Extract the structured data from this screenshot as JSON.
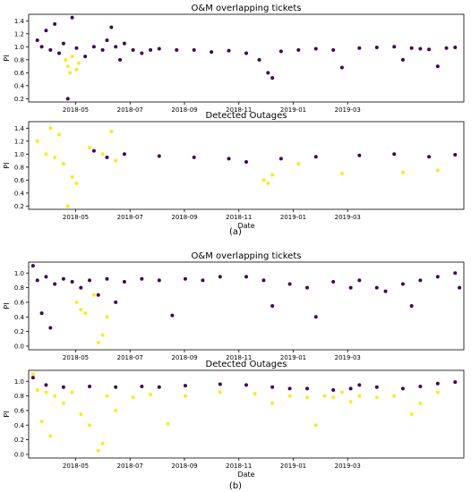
{
  "chart_data": [
    {
      "type": "scatter",
      "title": "O&M overlapping tickets",
      "xlabel": "",
      "ylabel": "PI",
      "xticks": [
        "2018-05",
        "2018-07",
        "2018-09",
        "2018-11",
        "2019-01",
        "2019-03"
      ],
      "yticks": [
        "0.2",
        "0.4",
        "0.6",
        "0.8",
        "1.0",
        "1.2",
        "1.4"
      ],
      "ylim": [
        0.15,
        1.5
      ],
      "grid": false,
      "point_color": "#440154",
      "highlight_color": "#fde725",
      "series": [
        {
          "values": [
            [
              0.02,
              1.1
            ],
            [
              0.03,
              1.0
            ],
            [
              0.04,
              1.25
            ],
            [
              0.05,
              0.95
            ],
            [
              0.06,
              1.35
            ],
            [
              0.07,
              0.9
            ],
            [
              0.08,
              1.05
            ],
            [
              0.09,
              0.2
            ],
            [
              0.1,
              1.45
            ],
            [
              0.11,
              0.98
            ],
            [
              0.13,
              0.85
            ],
            [
              0.15,
              1.0
            ],
            [
              0.17,
              0.95
            ],
            [
              0.18,
              1.1
            ],
            [
              0.19,
              1.3
            ],
            [
              0.2,
              1.0
            ],
            [
              0.21,
              0.8
            ],
            [
              0.22,
              1.05
            ],
            [
              0.24,
              0.95
            ],
            [
              0.26,
              0.9
            ],
            [
              0.28,
              0.95
            ],
            [
              0.3,
              0.97
            ],
            [
              0.34,
              0.95
            ],
            [
              0.38,
              0.95
            ],
            [
              0.42,
              0.92
            ],
            [
              0.46,
              0.94
            ],
            [
              0.5,
              0.9
            ],
            [
              0.53,
              0.8
            ],
            [
              0.55,
              0.6
            ],
            [
              0.56,
              0.52
            ],
            [
              0.58,
              0.93
            ],
            [
              0.62,
              0.95
            ],
            [
              0.66,
              0.97
            ],
            [
              0.7,
              0.95
            ],
            [
              0.72,
              0.68
            ],
            [
              0.76,
              0.98
            ],
            [
              0.8,
              0.99
            ],
            [
              0.84,
              1.0
            ],
            [
              0.86,
              0.8
            ],
            [
              0.88,
              0.98
            ],
            [
              0.9,
              0.97
            ],
            [
              0.92,
              0.96
            ],
            [
              0.94,
              0.7
            ],
            [
              0.96,
              0.98
            ],
            [
              0.98,
              0.99
            ]
          ]
        },
        {
          "values": [
            [
              0.085,
              0.8
            ],
            [
              0.09,
              0.7
            ],
            [
              0.095,
              0.6
            ],
            [
              0.1,
              0.85
            ],
            [
              0.11,
              0.65
            ],
            [
              0.115,
              0.75
            ]
          ]
        }
      ]
    },
    {
      "type": "scatter",
      "title": "Detected Outages",
      "xlabel": "Date",
      "ylabel": "PI",
      "xticks": [
        "2018-05",
        "2018-07",
        "2018-09",
        "2018-11",
        "2019-01",
        "2019-03"
      ],
      "yticks": [
        "0.2",
        "0.4",
        "0.6",
        "0.8",
        "1.0",
        "1.2",
        "1.4"
      ],
      "ylim": [
        0.15,
        1.5
      ],
      "grid": false,
      "point_color": "#440154",
      "highlight_color": "#fde725",
      "series": [
        {
          "values": [
            [
              0.15,
              1.05
            ],
            [
              0.18,
              0.95
            ],
            [
              0.22,
              1.0
            ],
            [
              0.3,
              0.97
            ],
            [
              0.38,
              0.95
            ],
            [
              0.46,
              0.93
            ],
            [
              0.5,
              0.88
            ],
            [
              0.58,
              0.93
            ],
            [
              0.66,
              0.96
            ],
            [
              0.76,
              0.98
            ],
            [
              0.84,
              1.0
            ],
            [
              0.92,
              0.96
            ],
            [
              0.98,
              0.99
            ]
          ]
        },
        {
          "values": [
            [
              0.02,
              1.2
            ],
            [
              0.04,
              1.0
            ],
            [
              0.05,
              1.4
            ],
            [
              0.06,
              0.95
            ],
            [
              0.07,
              1.3
            ],
            [
              0.08,
              0.85
            ],
            [
              0.09,
              0.2
            ],
            [
              0.1,
              0.65
            ],
            [
              0.11,
              0.55
            ],
            [
              0.14,
              1.1
            ],
            [
              0.17,
              1.0
            ],
            [
              0.19,
              1.35
            ],
            [
              0.2,
              0.9
            ],
            [
              0.54,
              0.6
            ],
            [
              0.55,
              0.55
            ],
            [
              0.56,
              0.68
            ],
            [
              0.62,
              0.85
            ],
            [
              0.72,
              0.7
            ],
            [
              0.86,
              0.72
            ],
            [
              0.94,
              0.75
            ]
          ]
        }
      ]
    },
    {
      "type": "scatter",
      "title": "O&M overlapping tickets",
      "xlabel": "",
      "ylabel": "PI",
      "xticks": [
        "2018-05",
        "2018-07",
        "2018-09",
        "2018-11",
        "2019-01",
        "2019-03"
      ],
      "yticks": [
        "0.0",
        "0.2",
        "0.4",
        "0.6",
        "0.8",
        "1.0"
      ],
      "ylim": [
        -0.05,
        1.15
      ],
      "grid": false,
      "point_color": "#440154",
      "highlight_color": "#fde725",
      "series": [
        {
          "values": [
            [
              0.01,
              1.1
            ],
            [
              0.02,
              0.9
            ],
            [
              0.03,
              0.45
            ],
            [
              0.04,
              0.95
            ],
            [
              0.05,
              0.25
            ],
            [
              0.06,
              0.85
            ],
            [
              0.08,
              0.92
            ],
            [
              0.1,
              0.88
            ],
            [
              0.12,
              0.8
            ],
            [
              0.14,
              0.9
            ],
            [
              0.16,
              0.7
            ],
            [
              0.18,
              0.92
            ],
            [
              0.2,
              0.6
            ],
            [
              0.22,
              0.88
            ],
            [
              0.26,
              0.92
            ],
            [
              0.3,
              0.9
            ],
            [
              0.33,
              0.42
            ],
            [
              0.36,
              0.92
            ],
            [
              0.4,
              0.9
            ],
            [
              0.44,
              0.95
            ],
            [
              0.5,
              0.95
            ],
            [
              0.54,
              0.9
            ],
            [
              0.56,
              0.55
            ],
            [
              0.6,
              0.85
            ],
            [
              0.64,
              0.8
            ],
            [
              0.66,
              0.4
            ],
            [
              0.7,
              0.88
            ],
            [
              0.74,
              0.8
            ],
            [
              0.76,
              0.9
            ],
            [
              0.8,
              0.8
            ],
            [
              0.82,
              0.75
            ],
            [
              0.86,
              0.85
            ],
            [
              0.88,
              0.55
            ],
            [
              0.9,
              0.9
            ],
            [
              0.94,
              0.95
            ],
            [
              0.98,
              1.0
            ],
            [
              0.99,
              0.8
            ]
          ]
        },
        {
          "values": [
            [
              0.11,
              0.6
            ],
            [
              0.12,
              0.5
            ],
            [
              0.13,
              0.45
            ],
            [
              0.15,
              0.7
            ],
            [
              0.16,
              0.05
            ],
            [
              0.17,
              0.15
            ],
            [
              0.18,
              0.4
            ]
          ]
        }
      ]
    },
    {
      "type": "scatter",
      "title": "Detected Outages",
      "xlabel": "Date",
      "ylabel": "PI",
      "xticks": [
        "2018-05",
        "2018-07",
        "2018-09",
        "2018-11",
        "2019-01",
        "2019-03"
      ],
      "yticks": [
        "0.0",
        "0.2",
        "0.4",
        "0.6",
        "0.8",
        "1.0"
      ],
      "ylim": [
        -0.05,
        1.15
      ],
      "grid": false,
      "point_color": "#440154",
      "highlight_color": "#fde725",
      "series": [
        {
          "values": [
            [
              0.01,
              1.05
            ],
            [
              0.04,
              0.95
            ],
            [
              0.08,
              0.92
            ],
            [
              0.14,
              0.93
            ],
            [
              0.2,
              0.92
            ],
            [
              0.26,
              0.93
            ],
            [
              0.3,
              0.92
            ],
            [
              0.36,
              0.94
            ],
            [
              0.44,
              0.96
            ],
            [
              0.5,
              0.95
            ],
            [
              0.56,
              0.92
            ],
            [
              0.6,
              0.9
            ],
            [
              0.64,
              0.9
            ],
            [
              0.7,
              0.88
            ],
            [
              0.74,
              0.9
            ],
            [
              0.76,
              0.95
            ],
            [
              0.8,
              0.92
            ],
            [
              0.86,
              0.9
            ],
            [
              0.9,
              0.93
            ],
            [
              0.94,
              0.97
            ],
            [
              0.98,
              0.99
            ]
          ]
        },
        {
          "values": [
            [
              0.01,
              1.1
            ],
            [
              0.02,
              0.88
            ],
            [
              0.03,
              0.45
            ],
            [
              0.04,
              0.85
            ],
            [
              0.05,
              0.25
            ],
            [
              0.06,
              0.8
            ],
            [
              0.08,
              0.7
            ],
            [
              0.1,
              0.85
            ],
            [
              0.12,
              0.55
            ],
            [
              0.14,
              0.4
            ],
            [
              0.16,
              0.05
            ],
            [
              0.17,
              0.15
            ],
            [
              0.18,
              0.8
            ],
            [
              0.2,
              0.6
            ],
            [
              0.24,
              0.78
            ],
            [
              0.28,
              0.82
            ],
            [
              0.32,
              0.42
            ],
            [
              0.36,
              0.8
            ],
            [
              0.44,
              0.85
            ],
            [
              0.52,
              0.83
            ],
            [
              0.56,
              0.7
            ],
            [
              0.6,
              0.8
            ],
            [
              0.64,
              0.78
            ],
            [
              0.66,
              0.4
            ],
            [
              0.68,
              0.8
            ],
            [
              0.7,
              0.78
            ],
            [
              0.72,
              0.85
            ],
            [
              0.74,
              0.72
            ],
            [
              0.76,
              0.8
            ],
            [
              0.8,
              0.78
            ],
            [
              0.84,
              0.8
            ],
            [
              0.88,
              0.55
            ],
            [
              0.9,
              0.7
            ],
            [
              0.94,
              0.85
            ]
          ]
        }
      ]
    }
  ],
  "captions": [
    "(a)",
    "(b)"
  ]
}
